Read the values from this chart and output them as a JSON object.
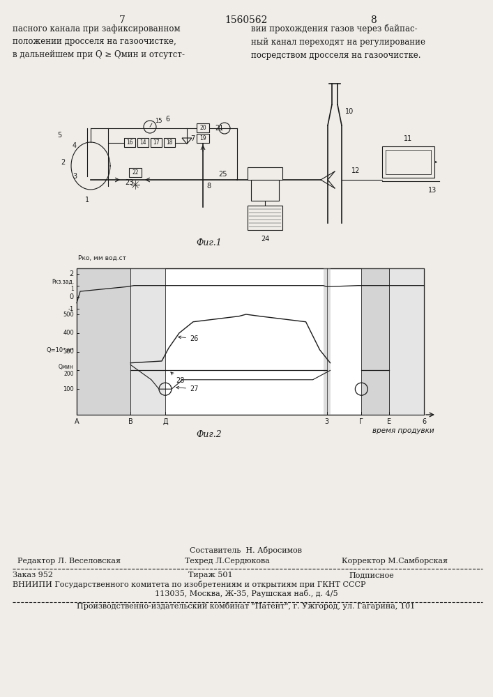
{
  "page_number_left": "7",
  "page_number_center": "1560562",
  "page_number_right": "8",
  "header_left": "пасного канала при зафиксированном\nположении дросселя на газоочистке,\nв дальнейшем при Q ≥ Qмин и отсутст-",
  "header_right": "вии прохождения газов через байпас-\nный канал переходят на регулирование\nпосредством дросселя на газоочистке.",
  "fig1_caption": "Τиг.1",
  "fig2_caption": "Τиг.2",
  "footer_sestavitel": "Составитель  Н. Абросимов",
  "footer_editor": "Редактор Л. Веселовская",
  "footer_tekhred": "Техред Л.Сердюкова",
  "footer_korrektor": "Корректор М.Самборская",
  "footer_zakaz": "Заказ 952",
  "footer_tirazh": "Тираж 501",
  "footer_podpisnoe": "Подписное",
  "footer_vniipis": "ВНИИПИ Государственного комитета по изобретениям и открытиям при ГКНТ СССР",
  "footer_address": "113035, Москва, Ж-35, Раушская наб., д. 4/5",
  "footer_kombinat": "Производственно-издательский комбинат \"Патент\", г. Ужгород, ул. Гагарина, 101",
  "bg_color": "#f0ede8",
  "line_color": "#1a1a1a"
}
